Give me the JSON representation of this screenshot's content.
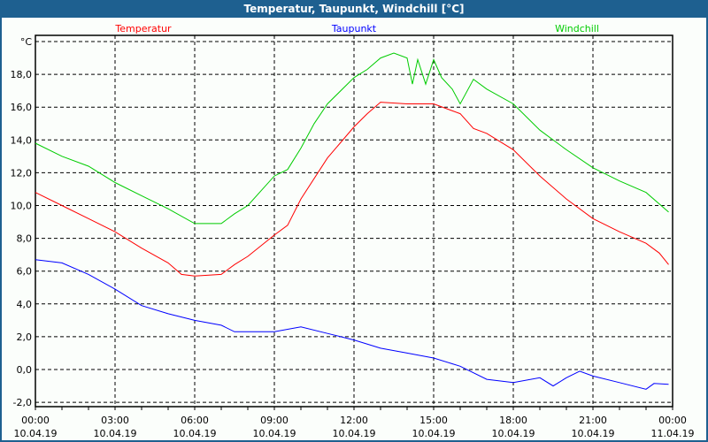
{
  "window": {
    "title": "Temperatur, Taupunkt, Windchill [°C]"
  },
  "chart_data": {
    "type": "line",
    "title": "Temperatur, Taupunkt, Windchill [°C]",
    "ylabel": "°C",
    "xlabel": "",
    "ylim": [
      -2,
      20
    ],
    "xlim_hours": [
      0,
      24
    ],
    "grid": true,
    "legend_placement": "top",
    "y_ticks": [
      "-2,0",
      "0,0",
      "2,0",
      "4,0",
      "6,0",
      "8,0",
      "10,0",
      "12,0",
      "14,0",
      "16,0",
      "18,0"
    ],
    "x_ticks": [
      {
        "time": "00:00",
        "date": "10.04.19"
      },
      {
        "time": "03:00",
        "date": "10.04.19"
      },
      {
        "time": "06:00",
        "date": "10.04.19"
      },
      {
        "time": "09:00",
        "date": "10.04.19"
      },
      {
        "time": "12:00",
        "date": "10.04.19"
      },
      {
        "time": "15:00",
        "date": "10.04.19"
      },
      {
        "time": "18:00",
        "date": "10.04.19"
      },
      {
        "time": "21:00",
        "date": "10.04.19"
      },
      {
        "time": "00:00",
        "date": "11.04.19"
      }
    ],
    "series": [
      {
        "name": "Temperatur",
        "color": "#ff0000",
        "x": [
          0,
          1,
          2,
          3,
          4,
          5,
          5.5,
          6,
          7,
          7.5,
          8,
          9,
          9.5,
          10,
          11,
          12,
          12.5,
          13,
          14,
          15,
          16,
          16.5,
          17,
          18,
          19,
          20,
          21,
          22,
          23,
          23.5,
          23.85
        ],
        "y": [
          10.8,
          10.0,
          9.2,
          8.4,
          7.4,
          6.5,
          5.8,
          5.7,
          5.8,
          6.4,
          6.9,
          8.2,
          8.8,
          10.4,
          12.9,
          14.8,
          15.6,
          16.3,
          16.2,
          16.2,
          15.6,
          14.7,
          14.4,
          13.4,
          11.8,
          10.4,
          9.2,
          8.4,
          7.7,
          7.1,
          6.4
        ]
      },
      {
        "name": "Taupunkt",
        "color": "#0000ff",
        "x": [
          0,
          1,
          2,
          3,
          4,
          5,
          6,
          7,
          7.5,
          8,
          9,
          10,
          11,
          12,
          13,
          14,
          15,
          16,
          17,
          18,
          19,
          19.5,
          20,
          20.5,
          21,
          22,
          23,
          23.3,
          23.85
        ],
        "y": [
          6.7,
          6.5,
          5.8,
          4.9,
          3.9,
          3.4,
          3.0,
          2.7,
          2.3,
          2.3,
          2.3,
          2.6,
          2.2,
          1.8,
          1.3,
          1.0,
          0.7,
          0.2,
          -0.6,
          -0.8,
          -0.5,
          -1.0,
          -0.5,
          -0.1,
          -0.4,
          -0.8,
          -1.2,
          -0.85,
          -0.9
        ]
      },
      {
        "name": "Windchill",
        "color": "#00cc00",
        "x": [
          0,
          1,
          2,
          3,
          4,
          5,
          6,
          7,
          7.5,
          8,
          9,
          9.5,
          10,
          10.5,
          11,
          12,
          12.5,
          13,
          13.5,
          14,
          14.2,
          14.4,
          14.7,
          15,
          15.3,
          15.7,
          16,
          16.5,
          17,
          18,
          19,
          20,
          21,
          22,
          23,
          23.85
        ],
        "y": [
          13.8,
          13.0,
          12.4,
          11.4,
          10.6,
          9.8,
          8.9,
          8.9,
          9.5,
          10.0,
          11.8,
          12.2,
          13.5,
          15.0,
          16.2,
          17.8,
          18.3,
          19.0,
          19.3,
          19.0,
          17.4,
          18.9,
          17.4,
          18.9,
          17.8,
          17.1,
          16.2,
          17.7,
          17.1,
          16.2,
          14.6,
          13.4,
          12.3,
          11.5,
          10.8,
          9.6
        ]
      }
    ]
  }
}
